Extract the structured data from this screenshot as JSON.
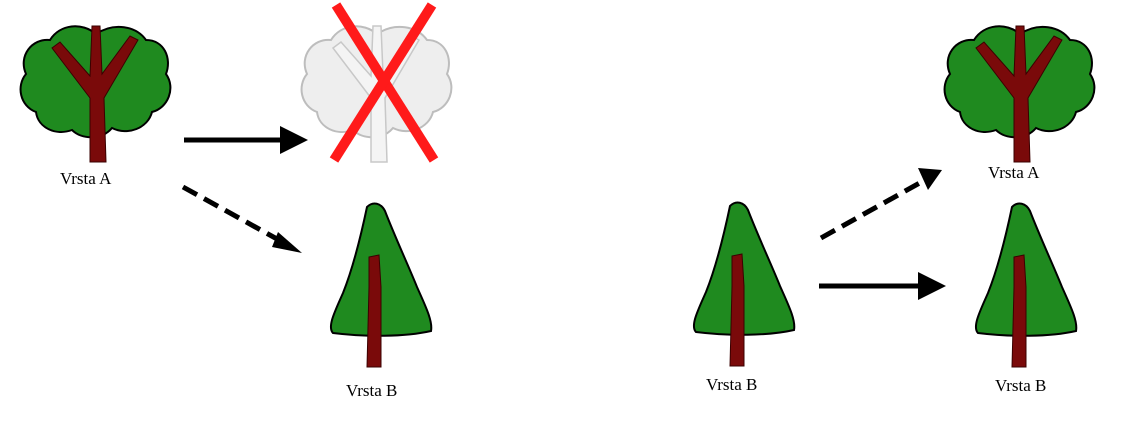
{
  "left_scenario": {
    "species_a_label": "Vrsta A",
    "species_b_label": "Vrsta B"
  },
  "right_scenario": {
    "species_b_label": "Vrsta B",
    "target_species_a_label": "Vrsta A",
    "target_species_b_label": "Vrsta B"
  },
  "colors": {
    "foliage": "#1f8a1f",
    "trunk": "#7a0a0a",
    "dead_foliage": "#eeeeee",
    "cross": "#ff1a1a",
    "arrow": "#000000"
  },
  "icons": {
    "broadleaf_tree": "deciduous-tree-icon",
    "conifer_tree": "conifer-tree-icon",
    "dead_tree": "dead-tree-icon",
    "cross": "red-cross-icon"
  }
}
